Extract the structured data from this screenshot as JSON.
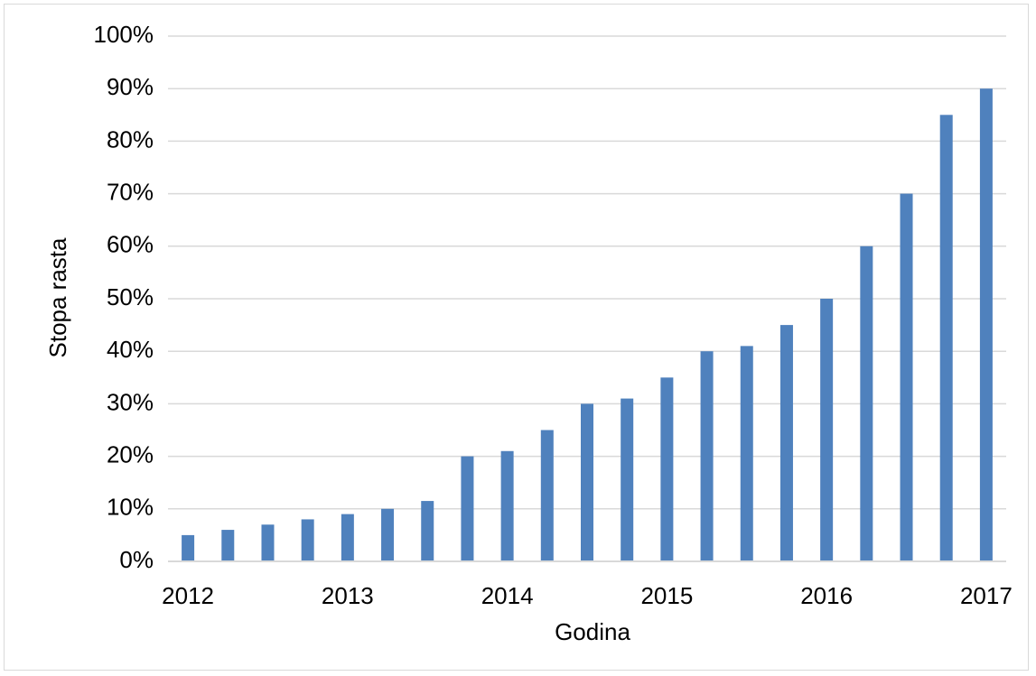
{
  "chart_data": {
    "type": "bar",
    "title": "",
    "xlabel": "Godina",
    "ylabel": "Stopa rasta",
    "y_tick_labels": [
      "0%",
      "10%",
      "20%",
      "30%",
      "40%",
      "50%",
      "60%",
      "70%",
      "80%",
      "90%",
      "100%"
    ],
    "x_tick_labels": [
      "2012",
      "2013",
      "2014",
      "2015",
      "2016",
      "2017"
    ],
    "ylim": [
      0,
      100
    ],
    "y_unit": "%",
    "grid": true,
    "legend": "none",
    "bar_color": "#4f81bd",
    "gridline_color": "#d9d9d9",
    "series": [
      {
        "values": [
          5,
          6,
          7,
          8,
          9,
          10,
          11.5,
          20,
          21,
          25,
          30,
          31,
          35,
          40,
          41,
          45,
          50,
          60,
          70,
          85,
          90
        ]
      }
    ]
  }
}
